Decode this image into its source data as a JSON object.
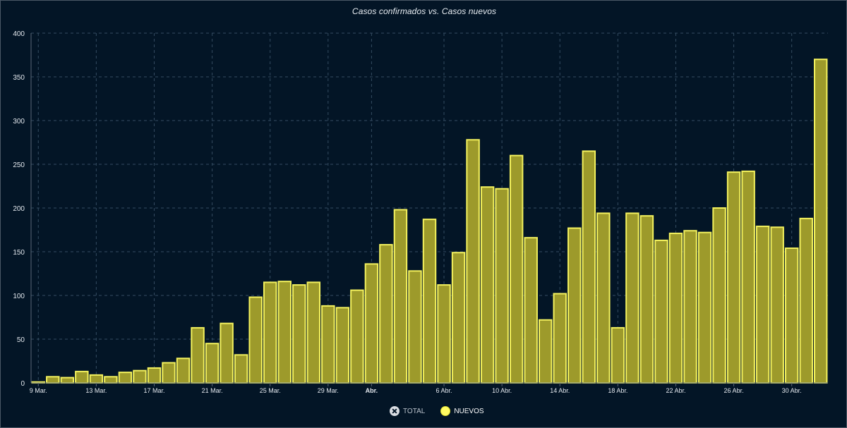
{
  "chart_data": {
    "type": "bar",
    "title": "Casos confirmados vs. Casos nuevos",
    "categories": [
      "9 Mar.",
      "10 Mar.",
      "11 Mar.",
      "12 Mar.",
      "13 Mar.",
      "14 Mar.",
      "15 Mar.",
      "16 Mar.",
      "17 Mar.",
      "18 Mar.",
      "19 Mar.",
      "20 Mar.",
      "21 Mar.",
      "22 Mar.",
      "23 Mar.",
      "24 Mar.",
      "25 Mar.",
      "26 Mar.",
      "27 Mar.",
      "28 Mar.",
      "29 Mar.",
      "30 Mar.",
      "31 Mar.",
      "Abr.",
      "2 Abr.",
      "3 Abr.",
      "4 Abr.",
      "5 Abr.",
      "6 Abr.",
      "7 Abr.",
      "8 Abr.",
      "9 Abr.",
      "10 Abr.",
      "11 Abr.",
      "12 Abr.",
      "13 Abr.",
      "14 Abr.",
      "15 Abr.",
      "16 Abr.",
      "17 Abr.",
      "18 Abr.",
      "19 Abr.",
      "20 Abr.",
      "21 Abr.",
      "22 Abr.",
      "23 Abr.",
      "24 Abr.",
      "25 Abr.",
      "26 Abr.",
      "27 Abr.",
      "28 Abr.",
      "29 Abr.",
      "30 Abr.",
      "1 May.",
      "2 May."
    ],
    "x_tick_labels": [
      {
        "label": "9 Mar.",
        "index": 0,
        "bold": false
      },
      {
        "label": "13 Mar.",
        "index": 4,
        "bold": false
      },
      {
        "label": "17 Mar.",
        "index": 8,
        "bold": false
      },
      {
        "label": "21 Mar.",
        "index": 12,
        "bold": false
      },
      {
        "label": "25 Mar.",
        "index": 16,
        "bold": false
      },
      {
        "label": "29 Mar.",
        "index": 20,
        "bold": false
      },
      {
        "label": "Abr.",
        "index": 23,
        "bold": true
      },
      {
        "label": "6 Abr.",
        "index": 28,
        "bold": false
      },
      {
        "label": "10 Abr.",
        "index": 32,
        "bold": false
      },
      {
        "label": "14 Abr.",
        "index": 36,
        "bold": false
      },
      {
        "label": "18 Abr.",
        "index": 40,
        "bold": false
      },
      {
        "label": "22 Abr.",
        "index": 44,
        "bold": false
      },
      {
        "label": "26 Abr.",
        "index": 48,
        "bold": false
      },
      {
        "label": "30 Abr.",
        "index": 52,
        "bold": false
      }
    ],
    "series": [
      {
        "name": "NUEVOS",
        "color": "#9d9a2b",
        "stroke": "#f4f25e",
        "values": [
          1,
          7,
          6,
          13,
          9,
          7,
          12,
          14,
          17,
          23,
          28,
          63,
          45,
          68,
          32,
          98,
          115,
          116,
          112,
          115,
          88,
          86,
          106,
          136,
          158,
          198,
          128,
          187,
          112,
          149,
          278,
          224,
          222,
          260,
          166,
          72,
          102,
          177,
          265,
          194,
          63,
          194,
          191,
          163,
          171,
          174,
          172,
          200,
          241,
          242,
          179,
          178,
          154,
          188,
          370
        ]
      }
    ],
    "ylim": [
      0,
      400
    ],
    "yticks": [
      0,
      50,
      100,
      150,
      200,
      250,
      300,
      350,
      400
    ],
    "grid": true,
    "legend_position": "bottom-center",
    "legend": [
      {
        "name": "TOTAL",
        "visible": false
      },
      {
        "name": "NUEVOS",
        "visible": true
      }
    ]
  },
  "colors": {
    "background": "#031526",
    "grid": "#344c61",
    "axis": "#596675",
    "tick_text": "#e2e7ed",
    "bar_fill": "#9d9a2b",
    "bar_stroke": "#f4f25e",
    "legend_new": "#fffb62",
    "legend_total": "#d9dde2"
  }
}
